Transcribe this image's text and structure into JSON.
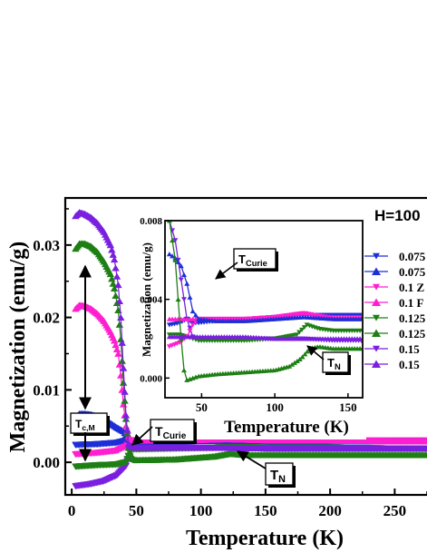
{
  "chart_data": [
    {
      "type": "scatter",
      "title": "",
      "xlabel": "Temperature (K)",
      "ylabel": "Magnetization (emu/g)",
      "xlim": [
        -5,
        275
      ],
      "ylim": [
        -0.0045,
        0.0365
      ],
      "xticks": [
        "0",
        "50",
        "100",
        "150",
        "200",
        "250"
      ],
      "yticks": [
        "0.00",
        "0.01",
        "0.02",
        "0.03"
      ],
      "field_label": "H=100",
      "annotations": {
        "tcm": "T",
        "tcm_sub": "c,M",
        "tcurie": "T",
        "tcurie_sub": "Curie",
        "tn": "T",
        "tn_sub": "N"
      },
      "series": [
        {
          "name": "0.075",
          "color": "#1f2fd6",
          "marker": "tri-down",
          "x": [
            3,
            20,
            35,
            42,
            45,
            50,
            80,
            120,
            160,
            200,
            250,
            275
          ],
          "y": [
            0.0024,
            0.0025,
            0.0027,
            0.003,
            0.0027,
            0.0028,
            0.0029,
            0.003,
            0.0029,
            0.0029,
            0.0029,
            0.0029
          ]
        },
        {
          "name": "0.075",
          "color": "#1f2fd6",
          "marker": "tri-up",
          "x": [
            3,
            6,
            10,
            15,
            20,
            25,
            30,
            35,
            38,
            40,
            42,
            44,
            46,
            50,
            80,
            120,
            160,
            200,
            250,
            275
          ],
          "y": [
            0.0062,
            0.0067,
            0.0067,
            0.0066,
            0.0063,
            0.0059,
            0.0054,
            0.0048,
            0.0045,
            0.0043,
            0.0038,
            0.0032,
            0.003,
            0.0029,
            0.0029,
            0.003,
            0.0029,
            0.0029,
            0.0029,
            0.0029
          ]
        },
        {
          "name": "0.1 Z",
          "color": "#ff1fd0",
          "marker": "tri-down",
          "x": [
            3,
            20,
            35,
            42,
            46,
            50,
            80,
            120,
            160,
            200,
            250,
            275
          ],
          "y": [
            0.0011,
            0.0013,
            0.0016,
            0.0022,
            0.003,
            0.003,
            0.003,
            0.0031,
            0.003,
            0.003,
            0.003,
            0.003
          ]
        },
        {
          "name": "0.1 F",
          "color": "#ff1fd0",
          "marker": "tri-up",
          "x": [
            3,
            6,
            10,
            15,
            20,
            25,
            30,
            33,
            36,
            38,
            40,
            42,
            44,
            46,
            50,
            80,
            120,
            160,
            200,
            250,
            275
          ],
          "y": [
            0.0212,
            0.0217,
            0.0216,
            0.0212,
            0.0205,
            0.0195,
            0.018,
            0.0168,
            0.015,
            0.012,
            0.008,
            0.005,
            0.0036,
            0.0031,
            0.003,
            0.003,
            0.0032,
            0.003,
            0.003,
            0.0029,
            0.0029
          ]
        },
        {
          "name": "0.125",
          "color": "#1e7f14",
          "marker": "tri-down",
          "x": [
            3,
            20,
            35,
            42,
            46,
            50,
            80,
            110,
            122,
            130,
            160,
            200,
            250,
            275
          ],
          "y": [
            -0.0006,
            -0.0004,
            -0.0003,
            0.0,
            0.0018,
            0.0018,
            0.0019,
            0.002,
            0.0022,
            0.0021,
            0.002,
            0.002,
            0.0019,
            0.0019
          ]
        },
        {
          "name": "0.125",
          "color": "#1e7f14",
          "marker": "tri-up",
          "x": [
            3,
            6,
            10,
            15,
            20,
            25,
            30,
            33,
            36,
            38,
            40,
            42,
            44,
            47,
            50,
            80,
            110,
            122,
            135,
            160,
            200,
            250,
            275
          ],
          "y": [
            0.0295,
            0.0302,
            0.0302,
            0.0298,
            0.029,
            0.0277,
            0.026,
            0.024,
            0.021,
            0.017,
            0.011,
            0.006,
            0.002,
            0.0005,
            0.0003,
            0.0004,
            0.0008,
            0.0012,
            0.001,
            0.001,
            0.001,
            0.001,
            0.001
          ]
        },
        {
          "name": "0.15",
          "color": "#7a1fe0",
          "marker": "tri-down",
          "x": [
            3,
            15,
            25,
            35,
            42,
            46,
            50,
            80,
            120,
            160,
            200,
            250,
            275
          ],
          "y": [
            -0.0033,
            -0.003,
            -0.0026,
            -0.0018,
            -0.0005,
            0.0021,
            0.002,
            0.002,
            0.002,
            0.0019,
            0.0019,
            0.0019,
            0.0019
          ]
        },
        {
          "name": "0.15",
          "color": "#7a1fe0",
          "marker": "tri-up",
          "x": [
            3,
            6,
            10,
            15,
            20,
            25,
            30,
            33,
            36,
            38,
            40,
            42,
            44,
            47,
            50,
            80,
            120,
            160,
            200,
            250,
            275
          ],
          "y": [
            0.034,
            0.0345,
            0.0343,
            0.0338,
            0.033,
            0.0318,
            0.03,
            0.028,
            0.0245,
            0.02,
            0.013,
            0.0065,
            0.0025,
            0.0021,
            0.002,
            0.002,
            0.002,
            0.0019,
            0.0019,
            0.0019,
            0.0019
          ]
        }
      ]
    },
    {
      "type": "scatter",
      "title": "",
      "xlabel": "Temperature (K)",
      "ylabel": "Magnetization (emu/g)",
      "xlim": [
        25,
        160
      ],
      "ylim": [
        -0.001,
        0.008
      ],
      "xticks": [
        "50",
        "100",
        "150"
      ],
      "yticks": [
        "0.000",
        "0.004",
        "0.008"
      ],
      "series_ref": "same samples as main panel",
      "series": [
        {
          "color": "#1f2fd6",
          "marker": "tri-down",
          "x": [
            28,
            35,
            40,
            44,
            48,
            60,
            80,
            100,
            120,
            140,
            160
          ],
          "y": [
            0.0027,
            0.0028,
            0.003,
            0.0028,
            0.0028,
            0.0029,
            0.003,
            0.0031,
            0.0032,
            0.0032,
            0.0032
          ]
        },
        {
          "color": "#1f2fd6",
          "marker": "tri-up",
          "x": [
            28,
            32,
            36,
            40,
            44,
            48,
            60,
            80,
            100,
            120,
            140,
            160
          ],
          "y": [
            0.0063,
            0.0061,
            0.0057,
            0.0048,
            0.0034,
            0.003,
            0.0029,
            0.0029,
            0.003,
            0.0031,
            0.003,
            0.003
          ]
        },
        {
          "color": "#ff1fd0",
          "marker": "tri-down",
          "x": [
            28,
            35,
            40,
            44,
            48,
            60,
            80,
            100,
            120,
            140,
            160
          ],
          "y": [
            0.0016,
            0.0018,
            0.0021,
            0.0027,
            0.003,
            0.003,
            0.003,
            0.0031,
            0.0033,
            0.003,
            0.003
          ]
        },
        {
          "color": "#ff1fd0",
          "marker": "tri-up",
          "x": [
            28,
            32,
            36,
            40,
            44,
            48,
            60,
            80,
            100,
            120,
            140,
            160
          ],
          "y": [
            0.003,
            0.003,
            0.003,
            0.003,
            0.003,
            0.003,
            0.003,
            0.003,
            0.0031,
            0.0033,
            0.0031,
            0.0031
          ]
        },
        {
          "color": "#1e7f14",
          "marker": "tri-down",
          "x": [
            28,
            35,
            40,
            44,
            48,
            60,
            80,
            100,
            115,
            122,
            130,
            140,
            160
          ],
          "y": [
            0.0022,
            0.0022,
            0.0021,
            0.002,
            0.0019,
            0.0019,
            0.0019,
            0.002,
            0.0022,
            0.0027,
            0.0025,
            0.0024,
            0.0024
          ]
        },
        {
          "color": "#1e7f14",
          "marker": "tri-up",
          "x": [
            28,
            32,
            36,
            38,
            40,
            44,
            48,
            60,
            80,
            100,
            110,
            118,
            124,
            130,
            140,
            160
          ],
          "y": [
            0.008,
            0.006,
            0.002,
            0.0004,
            -0.0001,
            0.0,
            0.0001,
            0.0002,
            0.0003,
            0.0004,
            0.0006,
            0.001,
            0.0015,
            0.0016,
            0.0015,
            0.0015
          ]
        },
        {
          "color": "#7a1fe0",
          "marker": "tri-down",
          "x": [
            28,
            32,
            36,
            40,
            44,
            48,
            60,
            80,
            100,
            120,
            140,
            160
          ],
          "y": [
            0.008,
            0.007,
            0.005,
            0.003,
            0.0021,
            0.002,
            0.002,
            0.002,
            0.002,
            0.002,
            0.0019,
            0.0019
          ]
        },
        {
          "color": "#7a1fe0",
          "marker": "tri-up",
          "x": [
            28,
            36,
            40,
            44,
            48,
            60,
            80,
            100,
            120,
            140,
            160
          ],
          "y": [
            0.0021,
            0.0021,
            0.0021,
            0.0021,
            0.0021,
            0.0021,
            0.0021,
            0.002,
            0.002,
            0.002,
            0.002
          ]
        }
      ]
    }
  ]
}
